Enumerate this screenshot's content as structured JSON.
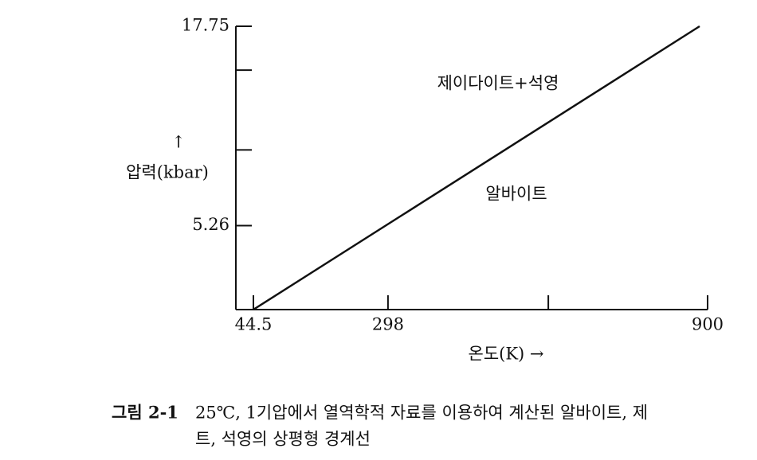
{
  "chart_data": {
    "type": "line",
    "x": [
      44.5,
      885
    ],
    "values": [
      0,
      17.75
    ],
    "color": "#111111",
    "xlim": [
      11.5,
      900
    ],
    "ylim": [
      0,
      17.75
    ],
    "xticks": [
      44.5,
      298,
      {
        "value": 600,
        "label": null
      },
      900
    ],
    "yticks": [
      5.26,
      {
        "value": 10,
        "label": null
      },
      {
        "value": 15,
        "label": null
      },
      17.75
    ],
    "ylabel_arrow": "↑",
    "ylabel": "압력(kbar)",
    "xlabel": "온도(K) →",
    "annotations": [
      "제이다이트+석영",
      "알바이트"
    ],
    "caption_label": "그림 2-1",
    "caption_lines": [
      "25℃, 1기압에서 열역학적 자료를 이용하여 계산된 알바이트, 제",
      "트, 석영의 상평형 경계선"
    ]
  }
}
